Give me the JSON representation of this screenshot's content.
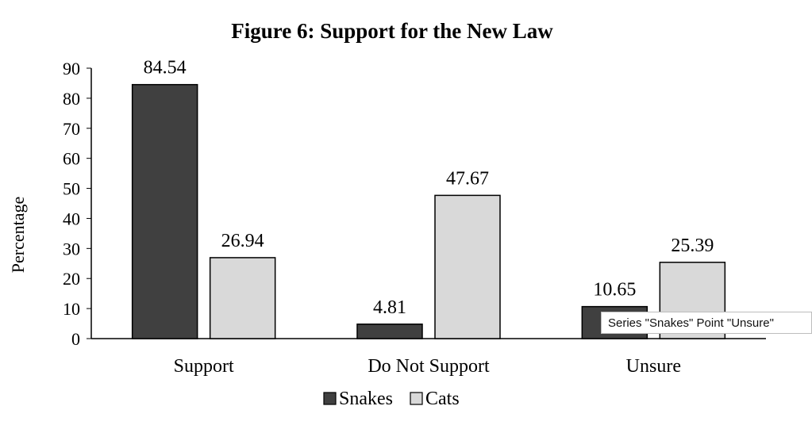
{
  "chart_data": {
    "type": "bar",
    "title": "Figure 6: Support for the New Law",
    "xlabel": "",
    "ylabel": "Percentage",
    "ylim": [
      0,
      90
    ],
    "yticks": [
      "0",
      "10",
      "20",
      "30",
      "40",
      "50",
      "60",
      "70",
      "80",
      "90"
    ],
    "categories": [
      "Support",
      "Do Not Support",
      "Unsure"
    ],
    "series": [
      {
        "name": "Snakes",
        "values": [
          84.54,
          4.81,
          10.65
        ],
        "labels": [
          "84.54",
          "4.81",
          "10.65"
        ],
        "color": "#404040"
      },
      {
        "name": "Cats",
        "values": [
          26.94,
          47.67,
          25.39
        ],
        "labels": [
          "26.94",
          "47.67",
          "25.39"
        ],
        "color": "#d9d9d9"
      }
    ],
    "grid": false,
    "legend_position": "bottom-center"
  },
  "tooltip": {
    "text": "Series \"Snakes\" Point \"Unsure\""
  }
}
